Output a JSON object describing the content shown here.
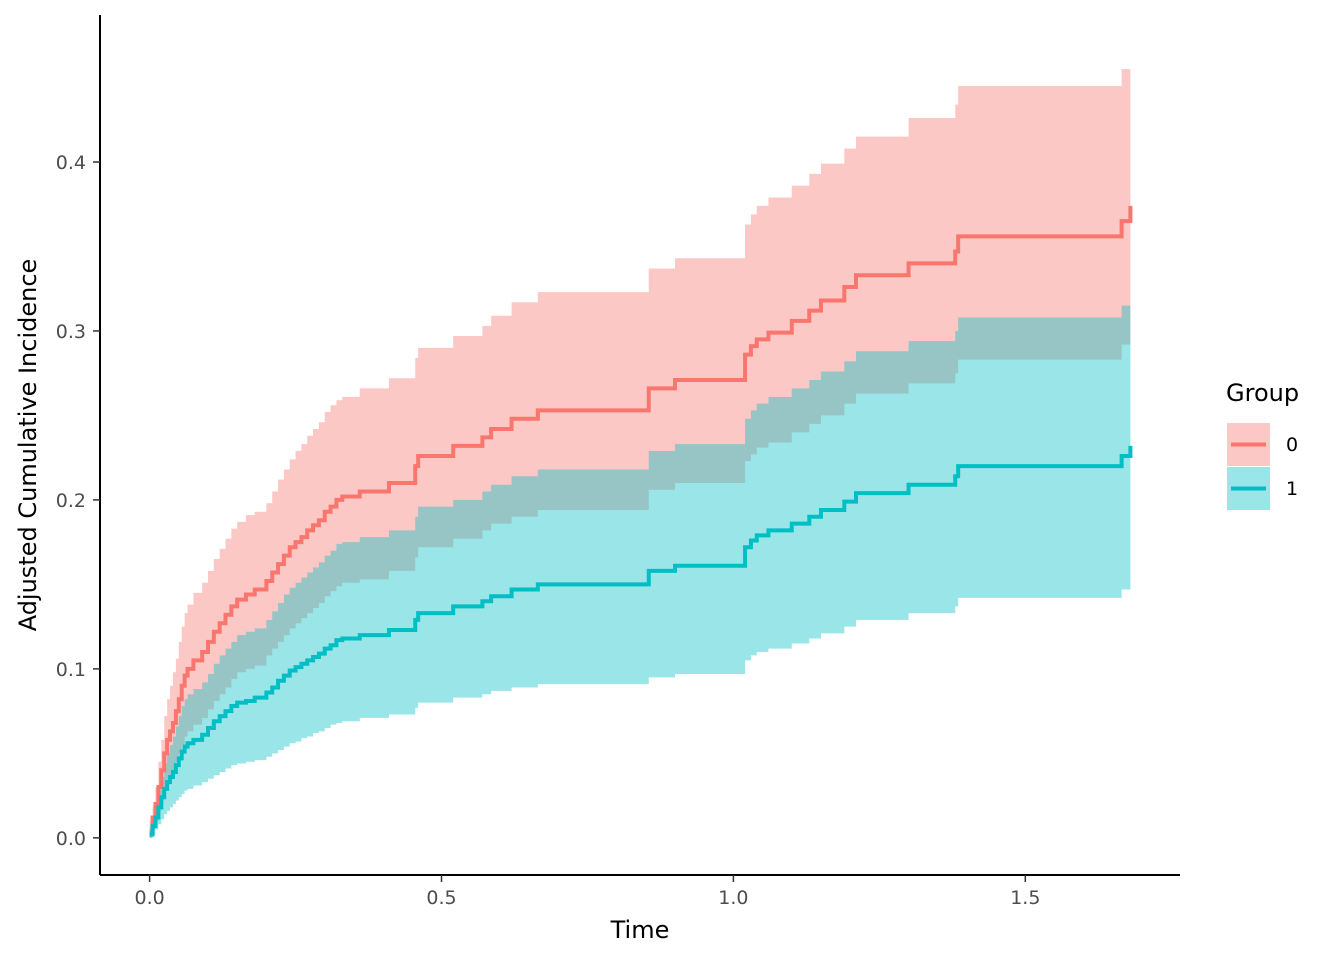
{
  "chart_data": {
    "type": "line",
    "subtype": "step",
    "title": "",
    "xlabel": "Time",
    "ylabel": "Adjusted Cumulative Incidence",
    "xlim": [
      -0.085,
      1.765
    ],
    "ylim": [
      -0.022,
      0.487
    ],
    "xticks": [
      0.0,
      0.5,
      1.0,
      1.5
    ],
    "xtick_labels": [
      "0.0",
      "0.5",
      "1.0",
      "1.5"
    ],
    "yticks": [
      0.0,
      0.1,
      0.2,
      0.3,
      0.4
    ],
    "ytick_labels": [
      "0.0",
      "0.1",
      "0.2",
      "0.3",
      "0.4"
    ],
    "grid": false,
    "legend": {
      "title": "Group",
      "position": "right"
    },
    "series": [
      {
        "name": "0",
        "color": "#F8766D",
        "band_color": "#F8766D",
        "band_opacity": 0.4,
        "x": [
          0.0,
          0.005,
          0.01,
          0.015,
          0.02,
          0.025,
          0.03,
          0.035,
          0.04,
          0.045,
          0.05,
          0.055,
          0.06,
          0.065,
          0.075,
          0.09,
          0.1,
          0.11,
          0.12,
          0.13,
          0.14,
          0.15,
          0.165,
          0.18,
          0.2,
          0.21,
          0.22,
          0.23,
          0.24,
          0.25,
          0.26,
          0.27,
          0.28,
          0.29,
          0.3,
          0.31,
          0.32,
          0.33,
          0.36,
          0.41,
          0.455,
          0.46,
          0.52,
          0.57,
          0.585,
          0.62,
          0.665,
          0.855,
          0.9,
          1.02,
          1.03,
          1.04,
          1.06,
          1.1,
          1.13,
          1.15,
          1.19,
          1.21,
          1.3,
          1.38,
          1.385,
          1.66,
          1.665,
          1.68
        ],
        "y": [
          0.003,
          0.012,
          0.02,
          0.03,
          0.04,
          0.05,
          0.058,
          0.063,
          0.068,
          0.075,
          0.082,
          0.09,
          0.096,
          0.1,
          0.105,
          0.11,
          0.116,
          0.122,
          0.127,
          0.132,
          0.137,
          0.141,
          0.144,
          0.147,
          0.152,
          0.157,
          0.162,
          0.167,
          0.172,
          0.175,
          0.178,
          0.182,
          0.185,
          0.188,
          0.193,
          0.196,
          0.2,
          0.202,
          0.205,
          0.21,
          0.22,
          0.226,
          0.232,
          0.237,
          0.242,
          0.248,
          0.253,
          0.266,
          0.271,
          0.286,
          0.291,
          0.295,
          0.299,
          0.306,
          0.312,
          0.318,
          0.326,
          0.333,
          0.34,
          0.347,
          0.356,
          0.356,
          0.365,
          0.374
        ],
        "lower": [
          0.0,
          0.005,
          0.01,
          0.016,
          0.022,
          0.028,
          0.033,
          0.036,
          0.039,
          0.045,
          0.05,
          0.055,
          0.06,
          0.063,
          0.067,
          0.071,
          0.076,
          0.081,
          0.085,
          0.089,
          0.094,
          0.098,
          0.1,
          0.102,
          0.108,
          0.112,
          0.116,
          0.12,
          0.124,
          0.127,
          0.13,
          0.133,
          0.136,
          0.139,
          0.143,
          0.146,
          0.149,
          0.151,
          0.153,
          0.158,
          0.166,
          0.172,
          0.177,
          0.182,
          0.186,
          0.19,
          0.194,
          0.206,
          0.21,
          0.223,
          0.227,
          0.231,
          0.234,
          0.24,
          0.245,
          0.25,
          0.257,
          0.263,
          0.269,
          0.275,
          0.283,
          0.283,
          0.292,
          0.3
        ],
        "upper": [
          0.01,
          0.018,
          0.03,
          0.045,
          0.058,
          0.072,
          0.082,
          0.09,
          0.098,
          0.106,
          0.116,
          0.125,
          0.133,
          0.138,
          0.145,
          0.151,
          0.158,
          0.165,
          0.171,
          0.177,
          0.183,
          0.187,
          0.191,
          0.193,
          0.198,
          0.205,
          0.212,
          0.218,
          0.224,
          0.229,
          0.233,
          0.238,
          0.242,
          0.246,
          0.252,
          0.256,
          0.259,
          0.261,
          0.266,
          0.272,
          0.284,
          0.29,
          0.297,
          0.303,
          0.309,
          0.317,
          0.323,
          0.337,
          0.343,
          0.363,
          0.369,
          0.374,
          0.379,
          0.386,
          0.393,
          0.399,
          0.408,
          0.415,
          0.426,
          0.434,
          0.445,
          0.445,
          0.455,
          0.466
        ]
      },
      {
        "name": "1",
        "color": "#00BFC4",
        "band_color": "#00BFC4",
        "band_opacity": 0.4,
        "x": [
          0.0,
          0.005,
          0.01,
          0.015,
          0.02,
          0.025,
          0.03,
          0.035,
          0.04,
          0.045,
          0.05,
          0.055,
          0.06,
          0.065,
          0.075,
          0.09,
          0.1,
          0.11,
          0.12,
          0.13,
          0.14,
          0.15,
          0.165,
          0.18,
          0.2,
          0.21,
          0.22,
          0.23,
          0.24,
          0.25,
          0.26,
          0.27,
          0.28,
          0.29,
          0.3,
          0.31,
          0.32,
          0.33,
          0.36,
          0.41,
          0.455,
          0.46,
          0.52,
          0.57,
          0.585,
          0.62,
          0.665,
          0.855,
          0.9,
          1.02,
          1.03,
          1.04,
          1.06,
          1.1,
          1.13,
          1.15,
          1.19,
          1.21,
          1.3,
          1.38,
          1.385,
          1.66,
          1.665,
          1.68
        ],
        "y": [
          0.002,
          0.007,
          0.012,
          0.018,
          0.024,
          0.029,
          0.033,
          0.036,
          0.039,
          0.043,
          0.047,
          0.051,
          0.054,
          0.056,
          0.058,
          0.061,
          0.065,
          0.069,
          0.072,
          0.075,
          0.078,
          0.08,
          0.081,
          0.083,
          0.086,
          0.089,
          0.093,
          0.096,
          0.099,
          0.101,
          0.103,
          0.105,
          0.107,
          0.109,
          0.112,
          0.114,
          0.117,
          0.118,
          0.12,
          0.123,
          0.129,
          0.133,
          0.137,
          0.14,
          0.143,
          0.147,
          0.15,
          0.158,
          0.161,
          0.172,
          0.176,
          0.179,
          0.182,
          0.186,
          0.19,
          0.194,
          0.199,
          0.204,
          0.209,
          0.214,
          0.22,
          0.22,
          0.226,
          0.232
        ],
        "lower": [
          0.0,
          0.002,
          0.005,
          0.008,
          0.011,
          0.014,
          0.016,
          0.018,
          0.02,
          0.022,
          0.024,
          0.026,
          0.028,
          0.029,
          0.031,
          0.033,
          0.035,
          0.037,
          0.039,
          0.041,
          0.043,
          0.044,
          0.045,
          0.046,
          0.048,
          0.05,
          0.052,
          0.054,
          0.056,
          0.057,
          0.059,
          0.06,
          0.062,
          0.063,
          0.065,
          0.067,
          0.068,
          0.069,
          0.071,
          0.073,
          0.077,
          0.08,
          0.083,
          0.085,
          0.087,
          0.089,
          0.091,
          0.095,
          0.097,
          0.105,
          0.108,
          0.11,
          0.112,
          0.115,
          0.118,
          0.121,
          0.125,
          0.129,
          0.133,
          0.137,
          0.142,
          0.142,
          0.147,
          0.152
        ],
        "upper": [
          0.006,
          0.012,
          0.02,
          0.028,
          0.036,
          0.044,
          0.05,
          0.055,
          0.06,
          0.066,
          0.072,
          0.078,
          0.082,
          0.085,
          0.088,
          0.092,
          0.097,
          0.103,
          0.108,
          0.112,
          0.116,
          0.12,
          0.122,
          0.124,
          0.129,
          0.134,
          0.139,
          0.144,
          0.148,
          0.151,
          0.154,
          0.157,
          0.16,
          0.163,
          0.167,
          0.17,
          0.174,
          0.175,
          0.178,
          0.182,
          0.19,
          0.196,
          0.2,
          0.205,
          0.209,
          0.214,
          0.218,
          0.229,
          0.233,
          0.248,
          0.253,
          0.257,
          0.261,
          0.266,
          0.271,
          0.276,
          0.282,
          0.288,
          0.294,
          0.3,
          0.308,
          0.308,
          0.315,
          0.323
        ]
      }
    ]
  }
}
